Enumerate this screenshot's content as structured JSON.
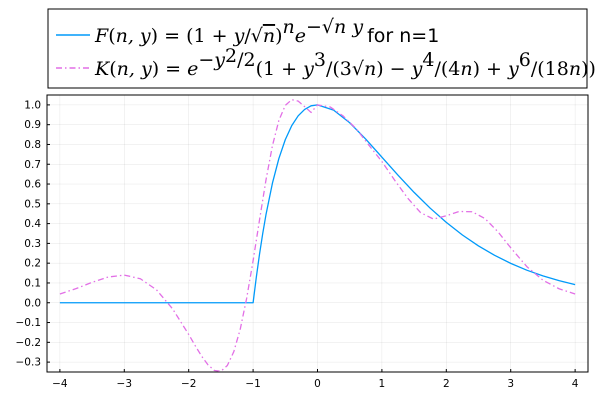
{
  "chart_data": {
    "type": "line",
    "title": "",
    "xlabel": "",
    "ylabel": "",
    "xlim": [
      -4.2,
      4.2
    ],
    "ylim": [
      -0.35,
      1.05
    ],
    "grid": true,
    "legend_position": "top",
    "x_ticks": [
      -4,
      -3,
      -2,
      -1,
      0,
      1,
      2,
      3,
      4
    ],
    "x_tick_labels": [
      "−4",
      "−3",
      "−2",
      "−1",
      "0",
      "1",
      "2",
      "3",
      "4"
    ],
    "y_ticks": [
      -0.3,
      -0.2,
      -0.1,
      0.0,
      0.1,
      0.2,
      0.3,
      0.4,
      0.5,
      0.6,
      0.7,
      0.8,
      0.9,
      1.0
    ],
    "y_tick_labels": [
      "−0.3",
      "−0.2",
      "−0.1",
      "0.0",
      "0.1",
      "0.2",
      "0.3",
      "0.4",
      "0.5",
      "0.6",
      "0.7",
      "0.8",
      "0.9",
      "1.0"
    ],
    "series": [
      {
        "name": "F(n, y) = (1 + y/√n)ⁿ e⁻√ⁿ ʸ for n=1",
        "color": "#009AFA",
        "style": "solid",
        "x": [
          -4.0,
          -3.0,
          -2.0,
          -1.0,
          -0.95,
          -0.9,
          -0.85,
          -0.8,
          -0.7,
          -0.6,
          -0.5,
          -0.4,
          -0.3,
          -0.2,
          -0.1,
          0.0,
          0.25,
          0.5,
          0.75,
          1.0,
          1.25,
          1.5,
          1.75,
          2.0,
          2.25,
          2.5,
          2.75,
          3.0,
          3.25,
          3.5,
          3.75,
          4.0
        ],
        "y": [
          0.0,
          0.0,
          0.0,
          0.0,
          0.1293,
          0.246,
          0.351,
          0.4451,
          0.6041,
          0.7288,
          0.8244,
          0.8951,
          0.9447,
          0.9771,
          0.9953,
          1.0,
          0.9734,
          0.9098,
          0.8268,
          0.7358,
          0.6446,
          0.5578,
          0.4779,
          0.406,
          0.3424,
          0.2873,
          0.2396,
          0.1991,
          0.1646,
          0.1359,
          0.1116,
          0.0916
        ]
      },
      {
        "name": "K(n, y) = e⁻ʸ²ᐟ²(1 + y³/(3√n) − y⁴/(4n) + y⁶/(18n))",
        "color": "#E26FE6",
        "style": "dashdot",
        "x": [
          -4.0,
          -3.75,
          -3.5,
          -3.25,
          -3.0,
          -2.75,
          -2.5,
          -2.25,
          -2.0,
          -1.9,
          -1.8,
          -1.7,
          -1.6,
          -1.5,
          -1.4,
          -1.3,
          -1.2,
          -1.1,
          -1.0,
          -0.9,
          -0.8,
          -0.7,
          -0.6,
          -0.5,
          -0.4,
          -0.3,
          -0.2,
          -0.1,
          0.0,
          0.2,
          0.4,
          0.6,
          0.8,
          1.0,
          1.2,
          1.4,
          1.6,
          1.8,
          2.0,
          2.2,
          2.4,
          2.6,
          2.8,
          3.0,
          3.25,
          3.5,
          3.75,
          4.0
        ],
        "y": [
          0.0443,
          0.0713,
          0.1032,
          0.1301,
          0.1399,
          0.1212,
          0.0653,
          -0.0308,
          -0.1601,
          -0.2163,
          -0.2696,
          -0.3141,
          -0.3425,
          -0.3463,
          -0.3172,
          -0.2478,
          -0.1343,
          0.0224,
          0.2123,
          0.4193,
          0.6206,
          0.7936,
          0.9213,
          0.9975,
          1.0264,
          1.0191,
          0.9913,
          0.9619,
          1.0,
          0.989,
          0.9434,
          0.8798,
          0.7958,
          0.7136,
          0.6185,
          0.5289,
          0.4558,
          0.423,
          0.4398,
          0.4613,
          0.4601,
          0.4258,
          0.3594,
          0.2779,
          0.1827,
          0.114,
          0.0707,
          0.0443
        ]
      }
    ]
  }
}
